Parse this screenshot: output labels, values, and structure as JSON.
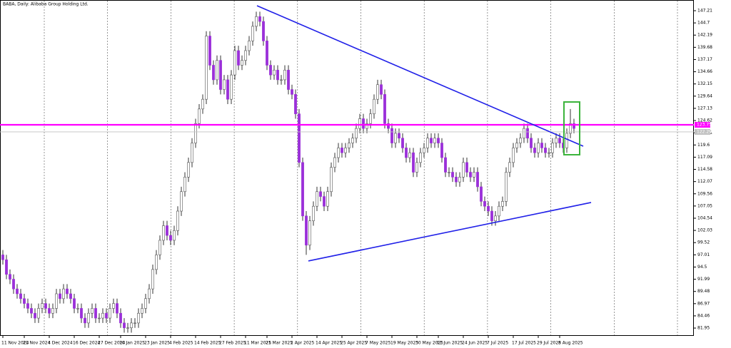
{
  "chart_data": {
    "type": "candlestick",
    "title": "BABA, Daily:  Alibaba Group Holding Ltd.",
    "categories": [
      "11 Nov 2024",
      null,
      null,
      null,
      null,
      null,
      "21 Nov 2024",
      null,
      null,
      null,
      null,
      null,
      null,
      "4 Dec 2024",
      null,
      null,
      null,
      null,
      null,
      null,
      "16 Dec 2024",
      null,
      null,
      null,
      null,
      null,
      null,
      "27 Dec 2024",
      null,
      null,
      null,
      null,
      null,
      "10 Jan 2025",
      null,
      null,
      null,
      null,
      null,
      null,
      "23 Jan 2025",
      null,
      null,
      null,
      null,
      null,
      null,
      "4 Feb 2025",
      null,
      null,
      null,
      null,
      null,
      null,
      "14 Feb 2025",
      null,
      null,
      null,
      null,
      null,
      null,
      "27 Feb 2025",
      null,
      null,
      null,
      null,
      null,
      null,
      "11 Mar 2025",
      null,
      null,
      null,
      null,
      null,
      "21 Mar 2025",
      null,
      null,
      null,
      null,
      null,
      null,
      "2 Apr 2025",
      null,
      null,
      null,
      null,
      null,
      null,
      "14 Apr 2025",
      null,
      null,
      null,
      null,
      null,
      null,
      "25 Apr 2025",
      null,
      null,
      null,
      null,
      null,
      null,
      "7 May 2025",
      null,
      null,
      null,
      null,
      null,
      null,
      "19 May 2025",
      null,
      null,
      null,
      null,
      null,
      null,
      "30 May 2025",
      null,
      null,
      null,
      null,
      null,
      "11 Jun 2025",
      null,
      null,
      null,
      null,
      null,
      null,
      "24 Jun 2025",
      null,
      null,
      null,
      null,
      null,
      null,
      "7 Jul 2025",
      null,
      null,
      null,
      null,
      null,
      null,
      "17 Jul 2025",
      null,
      null,
      null,
      null,
      null,
      null,
      "29 Jul 2025",
      null,
      null,
      null,
      null,
      null,
      "8 Aug 2025",
      null,
      null,
      null,
      null
    ],
    "open": [
      97,
      96,
      93,
      92,
      90,
      89,
      88,
      87,
      86,
      85,
      84,
      86,
      87,
      86,
      85,
      86,
      89,
      88,
      90,
      89,
      88,
      86,
      86,
      84,
      83,
      85,
      86,
      84,
      84,
      85,
      84,
      86,
      87,
      85,
      83,
      82,
      82,
      83,
      83,
      85,
      86,
      88,
      90,
      94,
      97,
      100,
      103,
      101,
      100,
      102,
      106,
      110,
      113,
      116,
      120,
      124,
      127,
      129,
      142,
      136,
      133,
      137,
      131,
      133,
      129,
      134,
      139,
      136,
      137,
      139,
      141,
      144,
      146,
      145,
      141,
      136,
      134,
      135,
      133,
      133,
      135,
      131,
      130,
      126,
      116,
      105,
      99,
      104,
      107,
      110,
      109,
      107,
      110,
      115,
      117,
      119,
      118,
      119,
      120,
      121,
      123,
      125,
      123,
      124,
      126,
      129,
      132,
      130,
      124,
      123,
      120,
      122,
      121,
      119,
      117,
      118,
      114,
      116,
      118,
      119,
      121,
      120,
      121,
      120,
      117,
      114,
      114,
      113,
      112,
      113,
      116,
      114,
      113,
      114,
      111,
      108,
      107,
      106,
      104,
      105,
      107,
      108,
      114,
      116,
      119,
      120,
      121,
      123,
      121,
      119,
      118,
      120,
      119,
      118,
      118,
      120,
      121,
      120,
      119,
      122,
      124
    ],
    "high": [
      98,
      97,
      94,
      93,
      91,
      90,
      89,
      88,
      87,
      86,
      87,
      88,
      88,
      87,
      87,
      90,
      90,
      91,
      91,
      90,
      89,
      87,
      87,
      85,
      86,
      87,
      87,
      85,
      86,
      86,
      87,
      88,
      88,
      86,
      84,
      83,
      84,
      84,
      86,
      87,
      89,
      91,
      95,
      98,
      101,
      104,
      104,
      102,
      103,
      107,
      111,
      114,
      117,
      121,
      125,
      128,
      130,
      143,
      143,
      137,
      138,
      138,
      134,
      134,
      135,
      140,
      140,
      138,
      140,
      142,
      145,
      147,
      147,
      146,
      142,
      137,
      136,
      136,
      134,
      136,
      136,
      132,
      131,
      127,
      117,
      106,
      105,
      108,
      111,
      111,
      110,
      111,
      116,
      118,
      120,
      120,
      120,
      121,
      122,
      124,
      126,
      126,
      125,
      127,
      130,
      133,
      133,
      131,
      125,
      124,
      123,
      123,
      122,
      120,
      119,
      119,
      117,
      119,
      120,
      122,
      122,
      122,
      122,
      121,
      118,
      115,
      115,
      114,
      114,
      117,
      117,
      115,
      115,
      115,
      112,
      109,
      108,
      107,
      106,
      108,
      109,
      115,
      117,
      120,
      121,
      122,
      124,
      124,
      122,
      120,
      121,
      121,
      120,
      119,
      121,
      122,
      122,
      121,
      123,
      127,
      125
    ],
    "low": [
      95,
      92,
      91,
      89,
      88,
      87,
      86,
      85,
      84,
      83,
      83,
      85,
      85,
      84,
      84,
      85,
      87,
      87,
      88,
      87,
      85,
      85,
      83,
      82,
      82,
      84,
      83,
      83,
      83,
      83,
      83,
      85,
      84,
      82,
      81,
      81,
      81,
      82,
      82,
      84,
      85,
      87,
      89,
      93,
      96,
      99,
      100,
      99,
      99,
      101,
      105,
      109,
      112,
      115,
      119,
      123,
      126,
      128,
      135,
      132,
      132,
      130,
      130,
      128,
      128,
      133,
      135,
      135,
      136,
      138,
      140,
      143,
      144,
      140,
      135,
      133,
      133,
      132,
      132,
      132,
      130,
      129,
      125,
      115,
      104,
      97,
      98,
      103,
      106,
      108,
      106,
      106,
      109,
      114,
      116,
      117,
      117,
      118,
      119,
      120,
      122,
      122,
      122,
      123,
      125,
      128,
      129,
      123,
      122,
      119,
      119,
      120,
      118,
      116,
      116,
      113,
      113,
      115,
      117,
      118,
      119,
      119,
      119,
      116,
      113,
      113,
      112,
      111,
      111,
      112,
      113,
      112,
      112,
      110,
      107,
      106,
      105,
      103,
      103,
      104,
      106,
      107,
      113,
      115,
      118,
      119,
      120,
      120,
      118,
      117,
      117,
      118,
      117,
      117,
      117,
      119,
      119,
      118,
      118,
      121,
      122
    ],
    "close": [
      96,
      93,
      92,
      90,
      89,
      88,
      87,
      86,
      85,
      84,
      86,
      87,
      86,
      85,
      86,
      89,
      88,
      90,
      89,
      88,
      86,
      86,
      84,
      83,
      85,
      86,
      84,
      84,
      85,
      84,
      86,
      87,
      85,
      83,
      82,
      82,
      83,
      83,
      85,
      86,
      88,
      90,
      94,
      97,
      100,
      103,
      101,
      100,
      102,
      106,
      110,
      113,
      116,
      120,
      124,
      127,
      129,
      142,
      136,
      133,
      137,
      131,
      133,
      129,
      134,
      139,
      136,
      137,
      139,
      141,
      144,
      146,
      145,
      141,
      136,
      134,
      135,
      133,
      133,
      135,
      131,
      130,
      126,
      116,
      105,
      99,
      104,
      107,
      110,
      109,
      107,
      110,
      115,
      117,
      119,
      118,
      119,
      120,
      121,
      123,
      125,
      123,
      124,
      126,
      129,
      132,
      130,
      124,
      123,
      120,
      122,
      121,
      119,
      117,
      118,
      114,
      116,
      118,
      119,
      121,
      120,
      121,
      120,
      117,
      114,
      114,
      113,
      112,
      113,
      116,
      114,
      113,
      114,
      111,
      108,
      107,
      106,
      104,
      105,
      107,
      108,
      114,
      116,
      119,
      120,
      121,
      123,
      121,
      119,
      118,
      120,
      119,
      118,
      118,
      120,
      121,
      120,
      119,
      122,
      124,
      123
    ],
    "up_color": "#ffffff",
    "down_color": "#9b30d9",
    "ylim": [
      80.49,
      149.41
    ],
    "yticks": [
      147.21,
      144.7,
      142.19,
      139.68,
      137.17,
      134.66,
      132.15,
      129.64,
      127.13,
      124.62,
      122.11,
      119.6,
      117.09,
      114.58,
      112.07,
      109.56,
      107.05,
      104.54,
      102.03,
      99.52,
      97.01,
      94.5,
      91.99,
      89.48,
      86.97,
      84.46,
      81.95
    ],
    "grid": true,
    "hlines": [
      {
        "value": 123.75,
        "color": "#ff00ff"
      },
      {
        "value": 122.29,
        "color": "#c0c0c0"
      }
    ],
    "trendlines": [
      {
        "x": [
          71.2,
          162.6
        ],
        "values": [
          148.24,
          119.35
        ],
        "color": "#2020e8"
      },
      {
        "x": [
          85.6,
          164.8
        ],
        "values": [
          95.75,
          107.77
        ],
        "color": "#2020e8"
      }
    ],
    "highlight": {
      "x": [
        157.2,
        161.6
      ],
      "values": [
        128.44,
        117.59
      ],
      "color": "#3cb43c"
    }
  }
}
